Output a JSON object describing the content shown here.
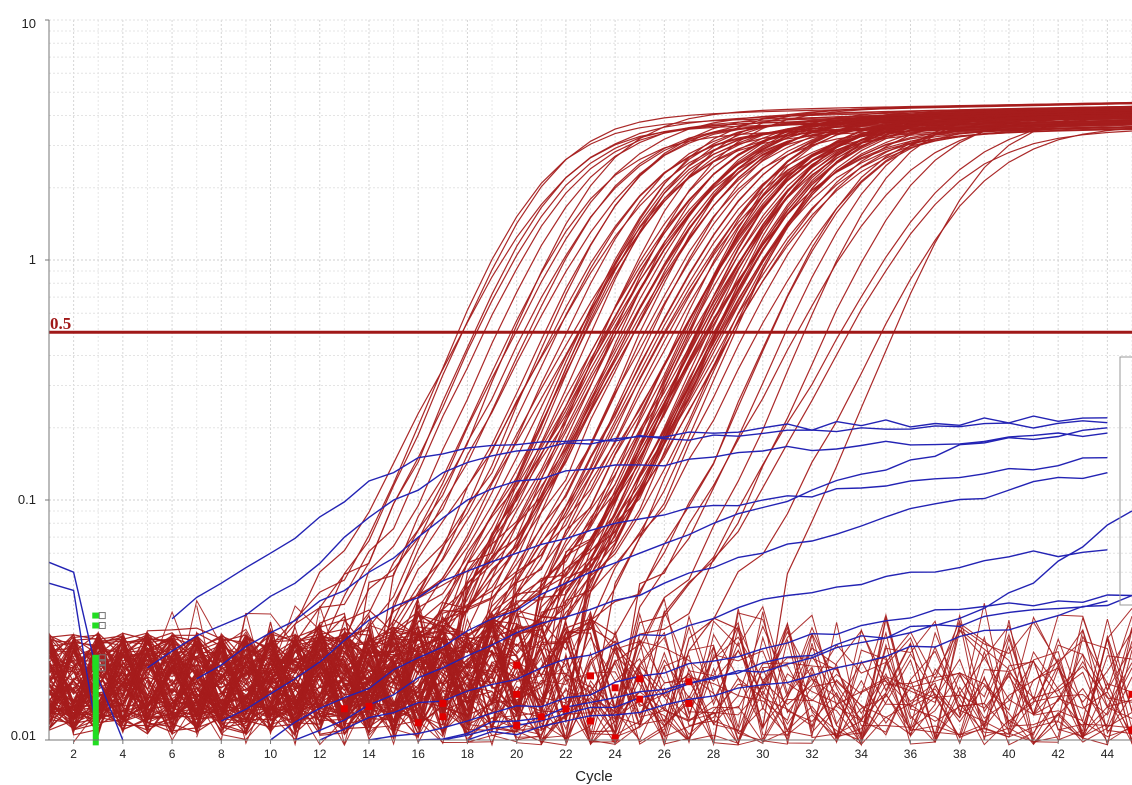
{
  "chart_data": {
    "type": "line",
    "title": "",
    "xlabel": "Cycle",
    "ylabel": "",
    "xlim": [
      1,
      45
    ],
    "ylim": [
      0.01,
      10
    ],
    "yscale": "log",
    "grid": true,
    "x_ticks": [
      2,
      4,
      6,
      8,
      10,
      12,
      14,
      16,
      18,
      20,
      22,
      24,
      26,
      28,
      30,
      32,
      34,
      36,
      38,
      40,
      42,
      44
    ],
    "x_tick_labels": [
      "2",
      "4",
      "6",
      "8",
      "10",
      "12",
      "14",
      "16",
      "18",
      "20",
      "22",
      "24",
      "26",
      "28",
      "30",
      "32",
      "34",
      "36",
      "38",
      "40",
      "42",
      "44"
    ],
    "y_ticks": [
      0.01,
      0.1,
      1,
      10
    ],
    "y_tick_labels": [
      "0.01",
      "0.1",
      "1",
      "10"
    ],
    "threshold": {
      "value": 0.5,
      "label": "0.5",
      "color": "#a01818"
    },
    "colors": {
      "amplified": "#a51c1c",
      "nonspecific": "#2323b4",
      "marker_red": "#e00000",
      "marker_green": "#22dd22"
    },
    "amplification_curves": {
      "count": 110,
      "plateau_range": [
        3.3,
        4.2
      ],
      "ct_range": [
        17.6,
        35.4
      ],
      "baseline_range": [
        0.01,
        0.03
      ]
    },
    "series": [
      {
        "group": "non-specific",
        "values": [
          [
            6,
            0.032
          ],
          [
            8,
            0.045
          ],
          [
            10,
            0.06
          ],
          [
            12,
            0.085
          ],
          [
            14,
            0.12
          ],
          [
            16,
            0.15
          ],
          [
            20,
            0.17
          ],
          [
            26,
            0.18
          ],
          [
            34,
            0.2
          ],
          [
            44,
            0.21
          ]
        ]
      },
      {
        "group": "non-specific",
        "values": [
          [
            5,
            0.02
          ],
          [
            8,
            0.03
          ],
          [
            11,
            0.045
          ],
          [
            13,
            0.07
          ],
          [
            15,
            0.1
          ],
          [
            17,
            0.13
          ],
          [
            20,
            0.16
          ],
          [
            24,
            0.18
          ],
          [
            30,
            0.2
          ],
          [
            44,
            0.22
          ]
        ]
      },
      {
        "group": "non-specific",
        "values": [
          [
            7,
            0.018
          ],
          [
            10,
            0.028
          ],
          [
            12,
            0.038
          ],
          [
            14,
            0.05
          ],
          [
            16,
            0.07
          ],
          [
            18,
            0.1
          ],
          [
            20,
            0.12
          ],
          [
            25,
            0.14
          ],
          [
            30,
            0.16
          ],
          [
            44,
            0.19
          ]
        ]
      },
      {
        "group": "non-specific",
        "values": [
          [
            8,
            0.012
          ],
          [
            11,
            0.018
          ],
          [
            13,
            0.026
          ],
          [
            15,
            0.036
          ],
          [
            17,
            0.046
          ],
          [
            20,
            0.06
          ],
          [
            24,
            0.08
          ],
          [
            30,
            0.1
          ],
          [
            36,
            0.12
          ],
          [
            44,
            0.15
          ]
        ]
      },
      {
        "group": "non-specific",
        "values": [
          [
            10,
            0.01
          ],
          [
            13,
            0.015
          ],
          [
            16,
            0.022
          ],
          [
            19,
            0.032
          ],
          [
            22,
            0.045
          ],
          [
            25,
            0.06
          ],
          [
            28,
            0.08
          ],
          [
            32,
            0.11
          ],
          [
            38,
            0.17
          ],
          [
            44,
            0.2
          ]
        ]
      },
      {
        "group": "non-specific",
        "values": [
          [
            11,
            0.01
          ],
          [
            14,
            0.014
          ],
          [
            17,
            0.02
          ],
          [
            20,
            0.028
          ],
          [
            23,
            0.035
          ],
          [
            26,
            0.045
          ],
          [
            30,
            0.06
          ],
          [
            35,
            0.085
          ],
          [
            40,
            0.11
          ],
          [
            44,
            0.13
          ]
        ]
      },
      {
        "group": "non-specific",
        "values": [
          [
            12,
            0.01
          ],
          [
            15,
            0.013
          ],
          [
            18,
            0.016
          ],
          [
            21,
            0.02
          ],
          [
            24,
            0.025
          ],
          [
            27,
            0.03
          ],
          [
            31,
            0.04
          ],
          [
            36,
            0.05
          ],
          [
            40,
            0.058
          ],
          [
            44,
            0.062
          ]
        ]
      },
      {
        "group": "non-specific",
        "values": [
          [
            14,
            0.01
          ],
          [
            18,
            0.012
          ],
          [
            22,
            0.015
          ],
          [
            26,
            0.019
          ],
          [
            30,
            0.024
          ],
          [
            34,
            0.03
          ],
          [
            38,
            0.035
          ],
          [
            42,
            0.038
          ],
          [
            45,
            0.04
          ]
        ]
      },
      {
        "group": "non-specific",
        "values": [
          [
            16,
            0.01
          ],
          [
            20,
            0.012
          ],
          [
            24,
            0.015
          ],
          [
            28,
            0.018
          ],
          [
            32,
            0.022
          ],
          [
            36,
            0.028
          ],
          [
            40,
            0.034
          ],
          [
            44,
            0.038
          ]
        ]
      },
      {
        "group": "non-specific",
        "values": [
          [
            18,
            0.01
          ],
          [
            22,
            0.012
          ],
          [
            26,
            0.014
          ],
          [
            30,
            0.017
          ],
          [
            34,
            0.021
          ],
          [
            38,
            0.027
          ],
          [
            42,
            0.033
          ],
          [
            45,
            0.04
          ]
        ]
      },
      {
        "group": "non-specific",
        "values": [
          [
            17,
            0.01
          ],
          [
            21,
            0.012
          ],
          [
            25,
            0.015
          ],
          [
            29,
            0.019
          ],
          [
            33,
            0.025
          ],
          [
            37,
            0.03
          ],
          [
            41,
            0.045
          ],
          [
            45,
            0.09
          ]
        ]
      },
      {
        "group": "non-specific",
        "values": [
          [
            1,
            0.055
          ],
          [
            2,
            0.05
          ],
          [
            3,
            0.018
          ],
          [
            4,
            0.01
          ]
        ]
      },
      {
        "group": "non-specific",
        "values": [
          [
            1,
            0.045
          ],
          [
            2,
            0.042
          ],
          [
            2.5,
            0.02
          ],
          [
            3,
            0.01
          ]
        ]
      }
    ],
    "markers": {
      "red": [
        [
          13,
          0.0135
        ],
        [
          14,
          0.0138
        ],
        [
          16,
          0.0118
        ],
        [
          17,
          0.0125
        ],
        [
          17,
          0.0142
        ],
        [
          20,
          0.0205
        ],
        [
          20,
          0.0155
        ],
        [
          20,
          0.0115
        ],
        [
          21,
          0.0125
        ],
        [
          22,
          0.0135
        ],
        [
          23,
          0.0185
        ],
        [
          23,
          0.012
        ],
        [
          24,
          0.0165
        ],
        [
          24,
          0.0102
        ],
        [
          25,
          0.018
        ],
        [
          25,
          0.0148
        ],
        [
          27,
          0.0175
        ],
        [
          27,
          0.0142
        ],
        [
          45,
          0.0155
        ],
        [
          45,
          0.011
        ]
      ],
      "green": [
        [
          2.9,
          0.033
        ],
        [
          2.9,
          0.03
        ],
        [
          2.9,
          0.022
        ],
        [
          2.9,
          0.021
        ],
        [
          2.9,
          0.02
        ]
      ]
    }
  }
}
